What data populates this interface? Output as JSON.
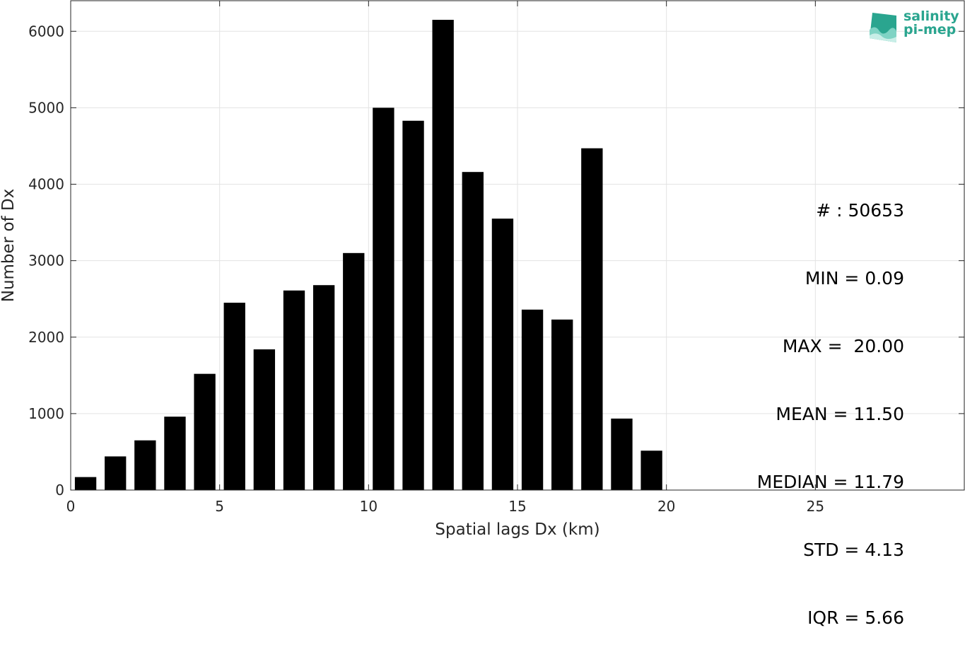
{
  "chart_data": {
    "type": "bar",
    "xlabel": "Spatial lags Dx (km)",
    "ylabel": "Number of Dx",
    "xlim": [
      0,
      30
    ],
    "ylim": [
      0,
      6400
    ],
    "xticks": [
      0,
      5,
      10,
      15,
      20,
      25
    ],
    "yticks": [
      0,
      1000,
      2000,
      3000,
      4000,
      5000,
      6000
    ],
    "grid": true,
    "bar_width": 0.72,
    "bar_color": "#000000",
    "x": [
      0.5,
      1.5,
      2.5,
      3.5,
      4.5,
      5.5,
      6.5,
      7.5,
      8.5,
      9.5,
      10.5,
      11.5,
      12.5,
      13.5,
      14.5,
      15.5,
      16.5,
      17.5,
      18.5,
      19.5
    ],
    "values": [
      170,
      440,
      650,
      960,
      1520,
      2450,
      1840,
      2610,
      2680,
      3100,
      5000,
      4830,
      6150,
      4160,
      3550,
      2360,
      2230,
      4470,
      935,
      515
    ]
  },
  "stats": {
    "lines": [
      "# : 50653",
      "MIN = 0.09",
      "MAX =  20.00",
      "MEAN = 11.50",
      "MEDIAN = 11.79",
      "STD = 4.13",
      "IQR = 5.66"
    ]
  },
  "logo": {
    "line1": "salinity",
    "line2": "pi-mep",
    "color": "#2aa58f"
  }
}
